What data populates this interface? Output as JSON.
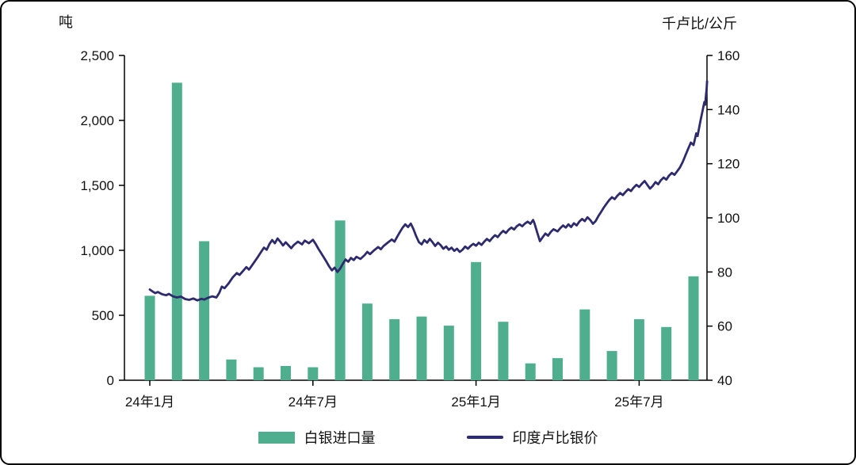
{
  "chart_data": {
    "type": "combo",
    "left_axis": {
      "title": "吨",
      "min": 0,
      "max": 2500,
      "ticks": [
        0,
        500,
        1000,
        1500,
        2000,
        2500
      ],
      "tick_labels": [
        "0",
        "500",
        "1,000",
        "1,500",
        "2,000",
        "2,500"
      ]
    },
    "right_axis": {
      "title": "千卢比/公斤",
      "min": 40,
      "max": 160,
      "ticks": [
        40,
        60,
        80,
        100,
        120,
        140,
        160
      ],
      "tick_labels": [
        "40",
        "60",
        "80",
        "100",
        "120",
        "140",
        "160"
      ]
    },
    "x_ticks": [
      {
        "m": 0,
        "label": "24年1月"
      },
      {
        "m": 6,
        "label": "24年7月"
      },
      {
        "m": 12,
        "label": "25年1月"
      },
      {
        "m": 18,
        "label": "25年7月"
      }
    ],
    "grid": false,
    "legend_position": "bottom",
    "series": [
      {
        "name": "白银进口量",
        "type": "bar",
        "axis": "left",
        "color": "#4fae8e",
        "x": [
          0,
          1,
          2,
          3,
          4,
          5,
          6,
          7,
          8,
          9,
          10,
          11,
          12,
          13,
          14,
          15,
          16,
          17,
          18,
          19,
          20
        ],
        "values": [
          650,
          2290,
          1070,
          160,
          100,
          110,
          100,
          1230,
          590,
          470,
          490,
          420,
          910,
          450,
          130,
          170,
          545,
          225,
          470,
          410,
          800
        ]
      },
      {
        "name": "印度卢比银价",
        "type": "line",
        "axis": "right",
        "color": "#2d2a6e",
        "points": [
          [
            0.0,
            73.5
          ],
          [
            0.1,
            72.8
          ],
          [
            0.2,
            72.2
          ],
          [
            0.3,
            72.6
          ],
          [
            0.45,
            71.8
          ],
          [
            0.6,
            71.4
          ],
          [
            0.7,
            71.9
          ],
          [
            0.85,
            71.0
          ],
          [
            1.0,
            70.6
          ],
          [
            1.15,
            70.9
          ],
          [
            1.3,
            70.0
          ],
          [
            1.45,
            69.7
          ],
          [
            1.6,
            70.2
          ],
          [
            1.75,
            69.5
          ],
          [
            1.9,
            70.1
          ],
          [
            2.0,
            69.8
          ],
          [
            2.15,
            70.5
          ],
          [
            2.3,
            71.0
          ],
          [
            2.45,
            70.6
          ],
          [
            2.55,
            72.2
          ],
          [
            2.65,
            74.6
          ],
          [
            2.75,
            74.0
          ],
          [
            2.9,
            75.8
          ],
          [
            3.05,
            78.0
          ],
          [
            3.2,
            79.6
          ],
          [
            3.3,
            78.9
          ],
          [
            3.45,
            80.6
          ],
          [
            3.55,
            81.8
          ],
          [
            3.65,
            80.9
          ],
          [
            3.8,
            83.0
          ],
          [
            3.95,
            85.2
          ],
          [
            4.1,
            87.5
          ],
          [
            4.2,
            89.0
          ],
          [
            4.3,
            88.2
          ],
          [
            4.4,
            90.3
          ],
          [
            4.5,
            91.8
          ],
          [
            4.6,
            90.6
          ],
          [
            4.7,
            92.4
          ],
          [
            4.8,
            91.2
          ],
          [
            4.9,
            89.8
          ],
          [
            5.0,
            91.0
          ],
          [
            5.1,
            89.9
          ],
          [
            5.2,
            88.8
          ],
          [
            5.3,
            90.0
          ],
          [
            5.45,
            91.2
          ],
          [
            5.6,
            90.2
          ],
          [
            5.7,
            91.6
          ],
          [
            5.85,
            90.6
          ],
          [
            6.0,
            91.9
          ],
          [
            6.1,
            90.4
          ],
          [
            6.2,
            88.6
          ],
          [
            6.35,
            86.2
          ],
          [
            6.5,
            83.8
          ],
          [
            6.6,
            82.0
          ],
          [
            6.7,
            80.6
          ],
          [
            6.8,
            81.6
          ],
          [
            6.9,
            80.0
          ],
          [
            7.0,
            81.2
          ],
          [
            7.1,
            83.0
          ],
          [
            7.2,
            84.6
          ],
          [
            7.3,
            83.8
          ],
          [
            7.4,
            85.2
          ],
          [
            7.5,
            84.4
          ],
          [
            7.6,
            85.6
          ],
          [
            7.75,
            84.8
          ],
          [
            7.9,
            86.2
          ],
          [
            8.0,
            87.4
          ],
          [
            8.1,
            86.6
          ],
          [
            8.25,
            88.0
          ],
          [
            8.4,
            89.2
          ],
          [
            8.5,
            88.4
          ],
          [
            8.6,
            89.6
          ],
          [
            8.75,
            90.8
          ],
          [
            8.9,
            92.0
          ],
          [
            9.0,
            91.2
          ],
          [
            9.1,
            93.0
          ],
          [
            9.2,
            94.8
          ],
          [
            9.3,
            96.4
          ],
          [
            9.4,
            97.6
          ],
          [
            9.5,
            96.6
          ],
          [
            9.6,
            97.9
          ],
          [
            9.7,
            95.8
          ],
          [
            9.8,
            93.2
          ],
          [
            9.9,
            91.0
          ],
          [
            10.0,
            90.2
          ],
          [
            10.1,
            91.8
          ],
          [
            10.2,
            90.8
          ],
          [
            10.3,
            92.2
          ],
          [
            10.4,
            91.0
          ],
          [
            10.5,
            89.6
          ],
          [
            10.6,
            90.8
          ],
          [
            10.7,
            89.9
          ],
          [
            10.8,
            88.6
          ],
          [
            10.9,
            89.4
          ],
          [
            11.0,
            88.2
          ],
          [
            11.1,
            89.0
          ],
          [
            11.2,
            87.8
          ],
          [
            11.3,
            88.6
          ],
          [
            11.4,
            87.4
          ],
          [
            11.5,
            88.2
          ],
          [
            11.6,
            89.4
          ],
          [
            11.7,
            88.6
          ],
          [
            11.8,
            89.6
          ],
          [
            11.9,
            90.4
          ],
          [
            12.0,
            89.7
          ],
          [
            12.1,
            90.8
          ],
          [
            12.2,
            90.0
          ],
          [
            12.3,
            91.2
          ],
          [
            12.4,
            92.2
          ],
          [
            12.5,
            91.4
          ],
          [
            12.6,
            92.6
          ],
          [
            12.7,
            93.6
          ],
          [
            12.8,
            92.9
          ],
          [
            12.9,
            94.2
          ],
          [
            13.0,
            95.2
          ],
          [
            13.1,
            94.4
          ],
          [
            13.2,
            95.6
          ],
          [
            13.3,
            96.4
          ],
          [
            13.4,
            95.7
          ],
          [
            13.5,
            96.9
          ],
          [
            13.6,
            97.6
          ],
          [
            13.7,
            96.9
          ],
          [
            13.8,
            97.9
          ],
          [
            13.9,
            98.6
          ],
          [
            14.0,
            97.8
          ],
          [
            14.1,
            99.2
          ],
          [
            14.15,
            98.0
          ],
          [
            14.25,
            94.6
          ],
          [
            14.35,
            91.4
          ],
          [
            14.45,
            92.8
          ],
          [
            14.55,
            94.2
          ],
          [
            14.65,
            93.4
          ],
          [
            14.75,
            94.8
          ],
          [
            14.85,
            95.8
          ],
          [
            15.0,
            95.0
          ],
          [
            15.1,
            96.2
          ],
          [
            15.2,
            97.2
          ],
          [
            15.3,
            96.4
          ],
          [
            15.4,
            97.6
          ],
          [
            15.5,
            96.6
          ],
          [
            15.6,
            98.0
          ],
          [
            15.7,
            97.2
          ],
          [
            15.8,
            98.6
          ],
          [
            15.9,
            99.6
          ],
          [
            16.0,
            98.8
          ],
          [
            16.1,
            100.2
          ],
          [
            16.2,
            99.2
          ],
          [
            16.3,
            97.8
          ],
          [
            16.4,
            98.8
          ],
          [
            16.5,
            100.6
          ],
          [
            16.6,
            102.2
          ],
          [
            16.7,
            103.8
          ],
          [
            16.8,
            105.2
          ],
          [
            16.9,
            106.6
          ],
          [
            17.0,
            107.6
          ],
          [
            17.1,
            106.9
          ],
          [
            17.2,
            108.2
          ],
          [
            17.3,
            109.2
          ],
          [
            17.4,
            108.4
          ],
          [
            17.5,
            109.6
          ],
          [
            17.6,
            110.6
          ],
          [
            17.7,
            109.9
          ],
          [
            17.8,
            111.2
          ],
          [
            17.9,
            112.2
          ],
          [
            18.0,
            111.4
          ],
          [
            18.1,
            112.6
          ],
          [
            18.2,
            113.6
          ],
          [
            18.3,
            112.2
          ],
          [
            18.4,
            110.8
          ],
          [
            18.5,
            111.8
          ],
          [
            18.6,
            113.2
          ],
          [
            18.7,
            112.4
          ],
          [
            18.8,
            113.9
          ],
          [
            18.9,
            114.9
          ],
          [
            19.0,
            114.1
          ],
          [
            19.1,
            115.6
          ],
          [
            19.2,
            116.6
          ],
          [
            19.3,
            115.9
          ],
          [
            19.4,
            117.2
          ],
          [
            19.5,
            118.6
          ],
          [
            19.6,
            120.6
          ],
          [
            19.7,
            123.0
          ],
          [
            19.8,
            125.4
          ],
          [
            19.9,
            127.8
          ],
          [
            20.0,
            126.9
          ],
          [
            20.05,
            129.0
          ],
          [
            20.1,
            131.2
          ],
          [
            20.15,
            130.2
          ],
          [
            20.2,
            133.0
          ],
          [
            20.25,
            135.6
          ],
          [
            20.3,
            138.0
          ],
          [
            20.35,
            140.4
          ],
          [
            20.4,
            142.8
          ],
          [
            20.43,
            141.8
          ],
          [
            20.46,
            145.5
          ],
          [
            20.48,
            147.5
          ],
          [
            20.5,
            150.5
          ]
        ]
      }
    ]
  },
  "legend": {
    "items": [
      {
        "label": "白银进口量",
        "marker": "bar",
        "color": "#4fae8e"
      },
      {
        "label": "印度卢比银价",
        "marker": "line",
        "color": "#2d2a6e"
      }
    ]
  }
}
